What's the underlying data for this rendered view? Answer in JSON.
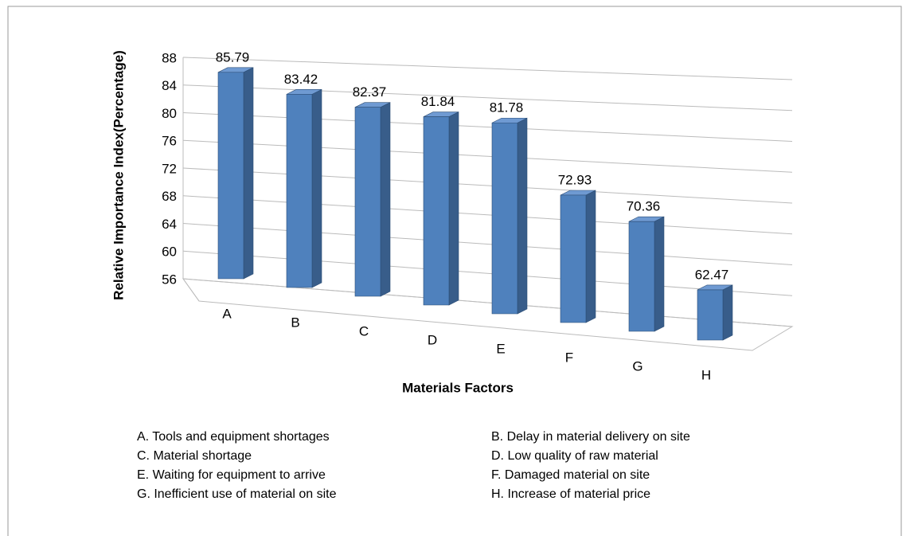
{
  "chart_data": {
    "type": "bar3d",
    "categories": [
      "A",
      "B",
      "C",
      "D",
      "E",
      "F",
      "G",
      "H"
    ],
    "values": [
      85.79,
      83.42,
      82.37,
      81.84,
      81.78,
      72.93,
      70.36,
      62.47
    ],
    "color": "#4f81bd",
    "ylim": [
      56,
      88
    ],
    "yticks": [
      56,
      60,
      64,
      68,
      72,
      76,
      80,
      84,
      88
    ],
    "grid": true,
    "xlabel": "Materials Factors",
    "ylabel": "Relative Importance Index(Percentage)",
    "notes": [
      "A. Tools and equipment shortages",
      "B. Delay in material delivery on site",
      "C. Material shortage",
      "D. Low quality of raw material",
      "E.  Waiting for equipment to arrive",
      "F. Damaged material on site",
      "G. Inefficient use of material on site",
      "H. Increase of material price"
    ]
  }
}
